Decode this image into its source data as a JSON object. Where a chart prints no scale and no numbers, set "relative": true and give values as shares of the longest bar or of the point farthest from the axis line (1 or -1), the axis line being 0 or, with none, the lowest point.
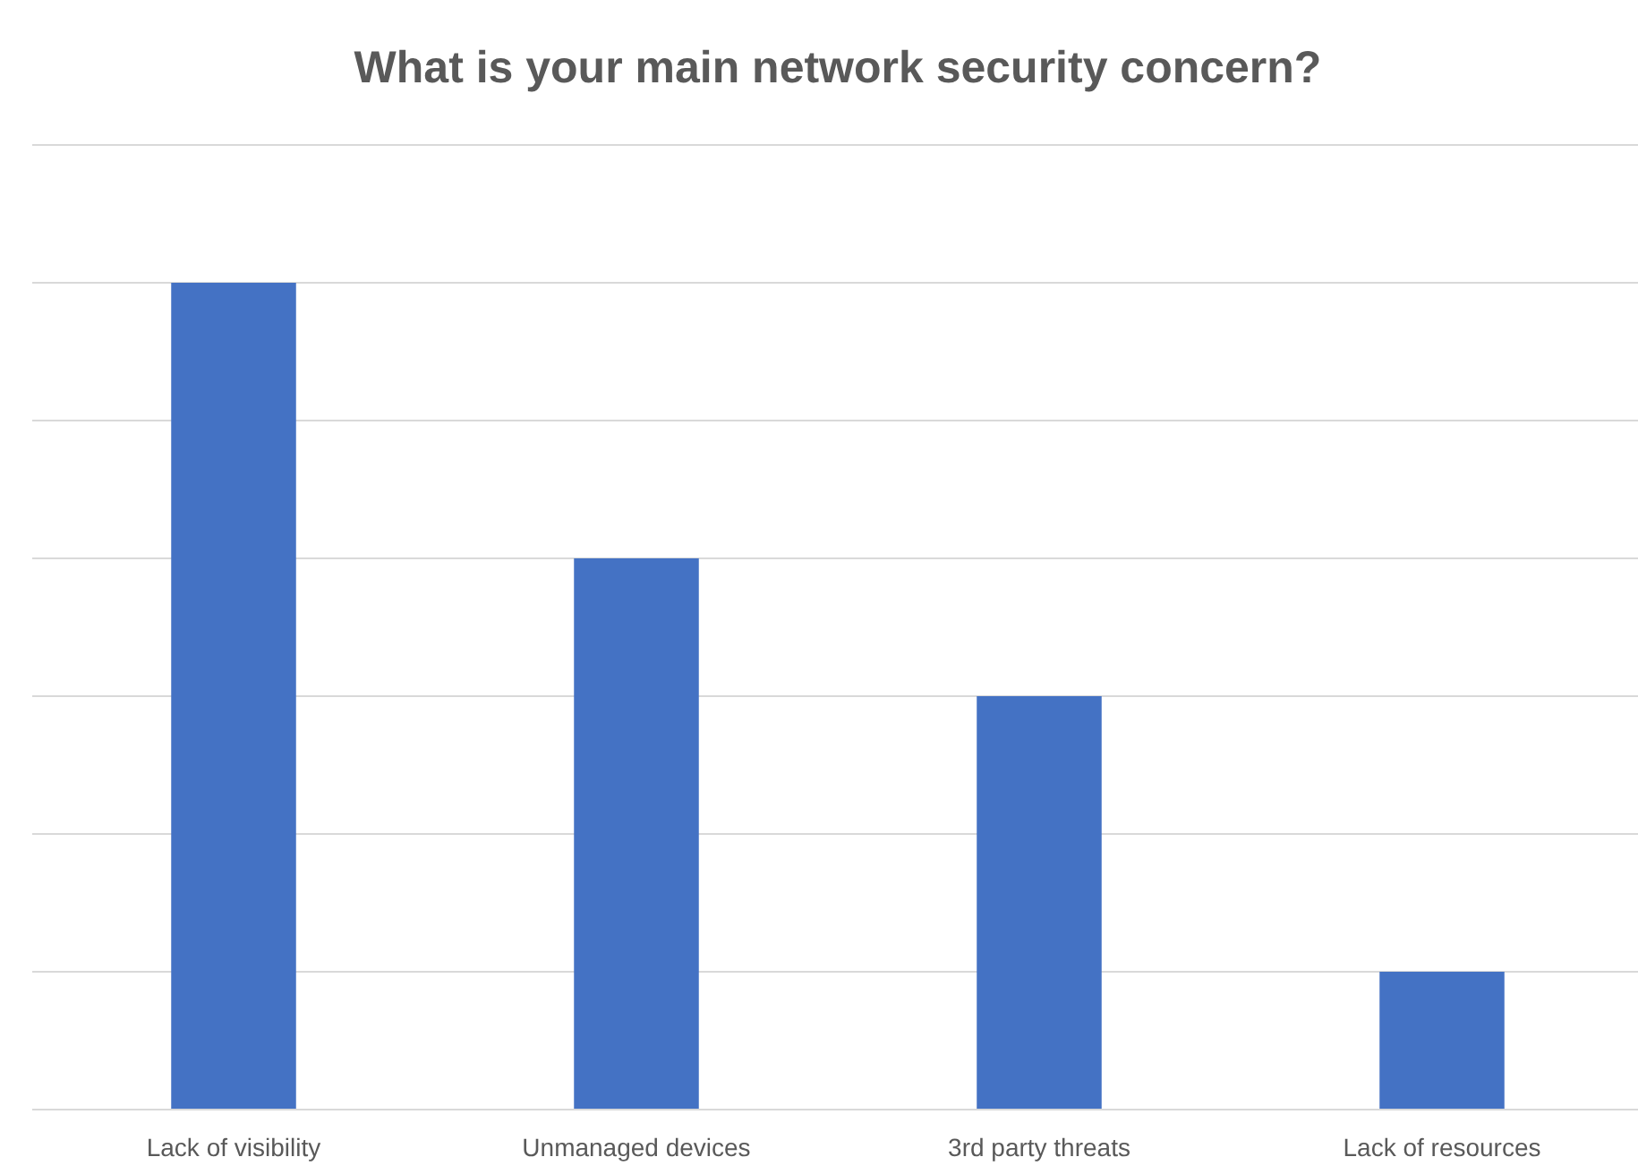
{
  "chart_data": {
    "type": "bar",
    "title": "What is your main network security concern?",
    "categories": [
      "Lack of visibility",
      "Unmanaged devices",
      "3rd party threats",
      "Lack of resources"
    ],
    "values": [
      1,
      0.6667,
      0.5,
      0.1667
    ],
    "color": "#4472c4",
    "relative": true,
    "grid": "y"
  }
}
